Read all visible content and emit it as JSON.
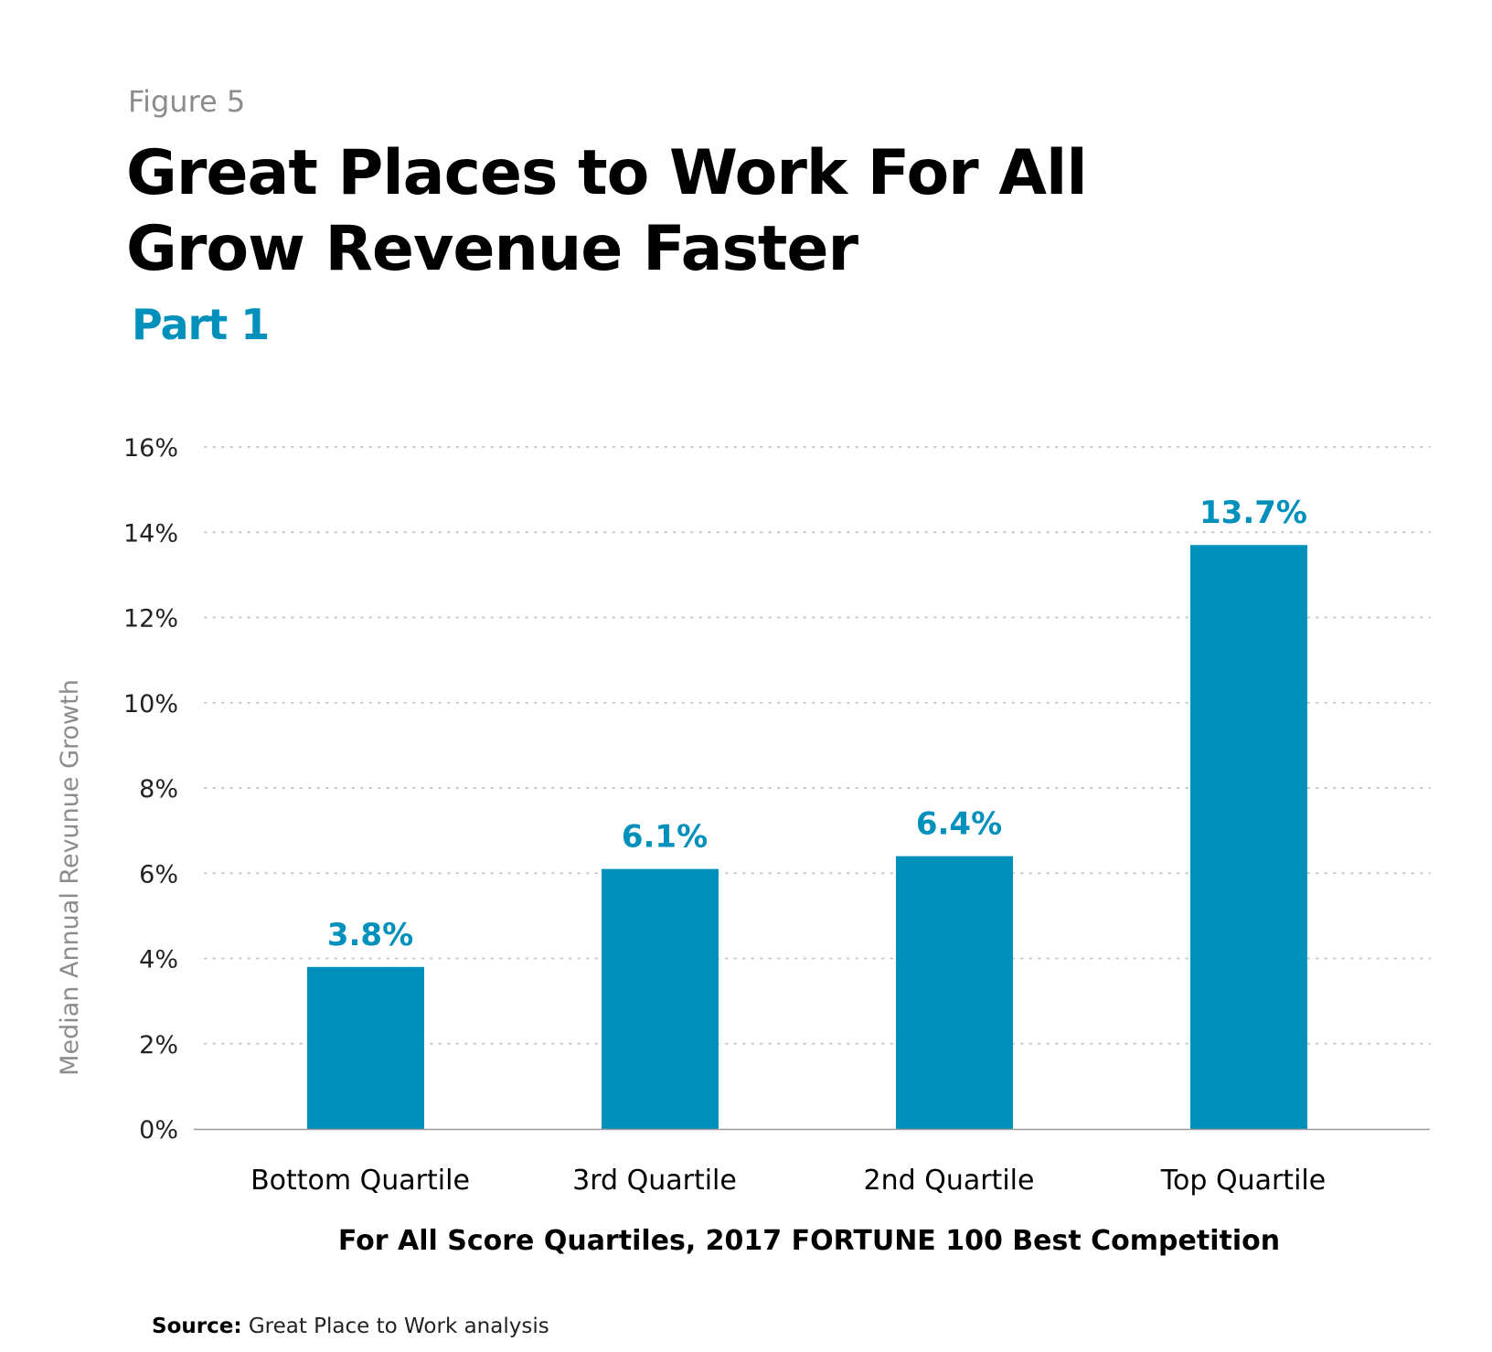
{
  "header": {
    "figure_label": "Figure 5",
    "title_line1": "Great Places to Work For All",
    "title_line2": "Grow Revenue Faster",
    "subtitle": "Part 1"
  },
  "colors": {
    "bar": "#0090bc",
    "value_label": "#0090bc",
    "axis_text": "#222222",
    "axis_label": "#8c8c8c",
    "grid": "#c8c8c8"
  },
  "chart_data": {
    "type": "bar",
    "categories": [
      "Bottom Quartile",
      "3rd Quartile",
      "2nd Quartile",
      "Top Quartile"
    ],
    "values": [
      3.8,
      6.1,
      6.4,
      13.7
    ],
    "value_labels": [
      "3.8%",
      "6.1%",
      "6.4%",
      "13.7%"
    ],
    "ylim": [
      0,
      16
    ],
    "yticks": [
      0,
      2,
      4,
      6,
      8,
      10,
      12,
      14,
      16
    ],
    "ytick_labels": [
      "0%",
      "2%",
      "4%",
      "6%",
      "8%",
      "10%",
      "12%",
      "14%",
      "16%"
    ],
    "ylabel": "Median Annual Revunue Growth",
    "xlabel": "For All Score Quartiles, 2017 FORTUNE 100 Best Competition",
    "grid": "dotted-horizontal",
    "legend": "none"
  },
  "source": {
    "label": "Source:",
    "text": " Great Place to Work analysis"
  }
}
